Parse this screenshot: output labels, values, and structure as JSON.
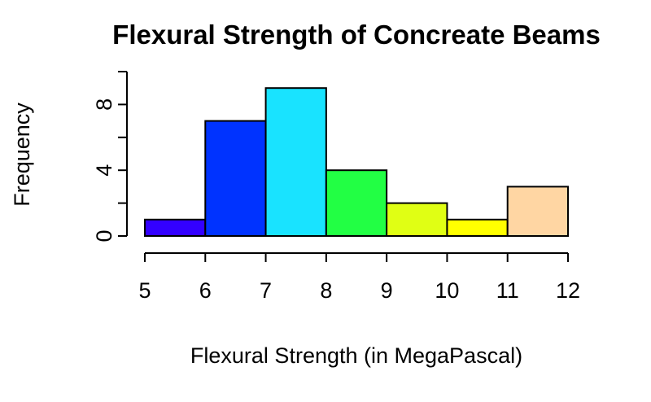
{
  "chart_data": {
    "type": "bar",
    "title": "Flexural Strength of Concreate Beams",
    "xlabel": "Flexural Strength (in MegaPascal)",
    "ylabel": "Frequency",
    "bins": [
      {
        "from": 5,
        "to": 6,
        "count": 1,
        "color": "#3300ff"
      },
      {
        "from": 6,
        "to": 7,
        "count": 7,
        "color": "#0033ff"
      },
      {
        "from": 7,
        "to": 8,
        "count": 9,
        "color": "#19e3ff"
      },
      {
        "from": 8,
        "to": 9,
        "count": 4,
        "color": "#22ff44"
      },
      {
        "from": 9,
        "to": 10,
        "count": 2,
        "color": "#e0ff14"
      },
      {
        "from": 10,
        "to": 11,
        "count": 1,
        "color": "#ffff00"
      },
      {
        "from": 11,
        "to": 12,
        "count": 3,
        "color": "#ffd6a3"
      }
    ],
    "xlim": [
      5,
      12
    ],
    "ylim": [
      0,
      10
    ],
    "x_ticks": [
      "5",
      "6",
      "7",
      "8",
      "9",
      "10",
      "11",
      "12"
    ],
    "y_ticks": [
      0,
      2,
      4,
      6,
      8,
      10
    ],
    "y_tick_labels": [
      "0",
      "4",
      "8"
    ],
    "grid": false,
    "legend": "none"
  }
}
